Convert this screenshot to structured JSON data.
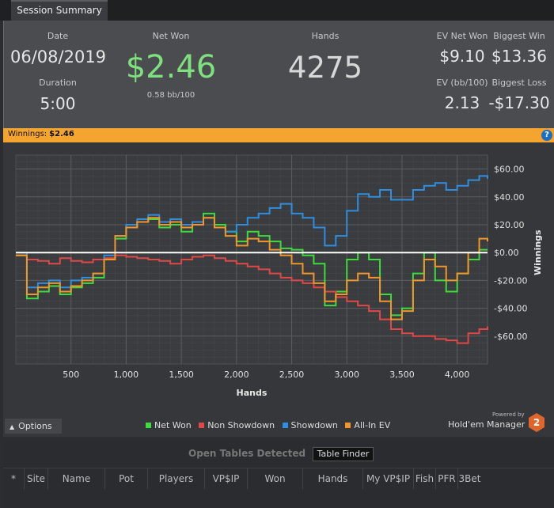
{
  "tab": {
    "label": "Session Summary"
  },
  "summary": {
    "date_label": "Date",
    "date_value": "06/08/2019",
    "duration_label": "Duration",
    "duration_value": "5:00",
    "netwon_label": "Net Won",
    "netwon_value": "$2.46",
    "netwon_sub": "0.58 bb/100",
    "hands_label": "Hands",
    "hands_value": "4275",
    "evnetwon_label": "EV Net Won",
    "evnetwon_value": "$9.10",
    "biggestwin_label": "Biggest Win",
    "biggestwin_value": "$13.36",
    "evbb_label": "EV (bb/100)",
    "evbb_value": "2.13",
    "biggestloss_label": "Biggest Loss",
    "biggestloss_value": "-$17.30"
  },
  "winbar": {
    "label": "Winnings:",
    "value": "$2.46",
    "help_icon": "?"
  },
  "colors": {
    "net_won": "#3ddc3d",
    "non_showdown": "#e04848",
    "showdown": "#2f8ee0",
    "allin_ev": "#f0962a",
    "accent": "#f3a530"
  },
  "chart_data": {
    "type": "line",
    "xlabel": "Hands",
    "ylabel": "Winnings",
    "xlim": [
      0,
      4275
    ],
    "ylim": [
      -80,
      70
    ],
    "x_ticks": [
      500,
      1000,
      1500,
      2000,
      2500,
      3000,
      3500,
      4000
    ],
    "x_tick_labels": [
      "500",
      "1,000",
      "1,500",
      "2,000",
      "2,500",
      "3,000",
      "3,500",
      "4,000"
    ],
    "y_ticks": [
      60,
      40,
      20,
      0,
      -20,
      -40,
      -60
    ],
    "y_tick_labels": [
      "$60.00",
      "$40.00",
      "$20.00",
      "$0.00",
      "-$20.00",
      "-$40.00",
      "-$60.00"
    ],
    "grid": true,
    "legend_position": "bottom",
    "series": [
      {
        "name": "Net Won",
        "color": "#3ddc3d",
        "x": [
          0,
          100,
          200,
          300,
          400,
          500,
          600,
          700,
          800,
          900,
          1000,
          1100,
          1200,
          1300,
          1400,
          1500,
          1600,
          1700,
          1800,
          1900,
          2000,
          2100,
          2200,
          2300,
          2400,
          2500,
          2600,
          2700,
          2800,
          2900,
          3000,
          3100,
          3200,
          3300,
          3400,
          3500,
          3600,
          3700,
          3800,
          3900,
          4000,
          4100,
          4200,
          4275
        ],
        "y": [
          -2,
          -33,
          -28,
          -24,
          -30,
          -25,
          -22,
          -18,
          -5,
          10,
          18,
          22,
          24,
          18,
          20,
          15,
          22,
          28,
          20,
          15,
          8,
          15,
          12,
          8,
          3,
          2,
          -2,
          -8,
          -38,
          -28,
          -5,
          0,
          -5,
          -30,
          -45,
          -40,
          -15,
          0,
          -20,
          -28,
          -15,
          -5,
          2,
          2
        ]
      },
      {
        "name": "Non Showdown",
        "color": "#e04848",
        "x": [
          0,
          100,
          200,
          300,
          400,
          500,
          600,
          700,
          800,
          900,
          1000,
          1100,
          1200,
          1300,
          1400,
          1500,
          1600,
          1700,
          1800,
          1900,
          2000,
          2100,
          2200,
          2300,
          2400,
          2500,
          2600,
          2700,
          2800,
          2900,
          3000,
          3100,
          3200,
          3300,
          3400,
          3500,
          3600,
          3700,
          3800,
          3900,
          4000,
          4100,
          4200,
          4275
        ],
        "y": [
          -2,
          -5,
          -6,
          -8,
          -4,
          -6,
          -7,
          -5,
          -4,
          -2,
          -3,
          -4,
          -5,
          -6,
          -8,
          -5,
          -3,
          -2,
          -4,
          -6,
          -8,
          -10,
          -12,
          -15,
          -18,
          -20,
          -22,
          -25,
          -28,
          -32,
          -35,
          -38,
          -42,
          -48,
          -55,
          -58,
          -60,
          -60,
          -62,
          -63,
          -65,
          -58,
          -55,
          -53
        ]
      },
      {
        "name": "Showdown",
        "color": "#2f8ee0",
        "x": [
          0,
          100,
          200,
          300,
          400,
          500,
          600,
          700,
          800,
          900,
          1000,
          1100,
          1200,
          1300,
          1400,
          1500,
          1600,
          1700,
          1800,
          1900,
          2000,
          2100,
          2200,
          2300,
          2400,
          2500,
          2600,
          2700,
          2800,
          2900,
          3000,
          3100,
          3200,
          3300,
          3400,
          3500,
          3600,
          3700,
          3800,
          3900,
          4000,
          4100,
          4200,
          4275
        ],
        "y": [
          0,
          -25,
          -22,
          -20,
          -25,
          -20,
          -18,
          -15,
          -2,
          12,
          20,
          24,
          27,
          22,
          24,
          20,
          22,
          25,
          18,
          15,
          20,
          25,
          28,
          32,
          35,
          28,
          25,
          18,
          5,
          12,
          30,
          42,
          40,
          45,
          38,
          38,
          45,
          48,
          50,
          45,
          48,
          52,
          55,
          53
        ]
      },
      {
        "name": "All-In EV",
        "color": "#f0962a",
        "x": [
          0,
          100,
          200,
          300,
          400,
          500,
          600,
          700,
          800,
          900,
          1000,
          1100,
          1200,
          1300,
          1400,
          1500,
          1600,
          1700,
          1800,
          1900,
          2000,
          2100,
          2200,
          2300,
          2400,
          2500,
          2600,
          2700,
          2800,
          2900,
          3000,
          3100,
          3200,
          3300,
          3400,
          3500,
          3600,
          3700,
          3800,
          3900,
          4000,
          4100,
          4200,
          4275
        ],
        "y": [
          -2,
          -30,
          -25,
          -22,
          -28,
          -24,
          -20,
          -15,
          -5,
          12,
          18,
          22,
          25,
          20,
          22,
          18,
          20,
          25,
          18,
          12,
          5,
          10,
          8,
          2,
          -2,
          -8,
          -15,
          -22,
          -35,
          -30,
          -20,
          -15,
          -18,
          -35,
          -48,
          -42,
          -20,
          -5,
          -10,
          -20,
          -15,
          0,
          10,
          8
        ]
      }
    ]
  },
  "options": {
    "label": "Options",
    "chevron_icon": "chevron-up"
  },
  "legend": [
    {
      "label": "Net Won",
      "color": "#3ddc3d"
    },
    {
      "label": "Non Showdown",
      "color": "#e04848"
    },
    {
      "label": "Showdown",
      "color": "#2f8ee0"
    },
    {
      "label": "All-In EV",
      "color": "#f0962a"
    }
  ],
  "brand": {
    "powered_by": "Powered by",
    "name": "Hold'em Manager",
    "logo": "2"
  },
  "open_tables": {
    "title": "Open Tables Detected",
    "button": "Table Finder",
    "columns": [
      "*",
      "Site",
      "Name",
      "Pot",
      "Players",
      "VP$IP",
      "Won",
      "Hands",
      "My VP$IP",
      "Fish",
      "PFR",
      "3Bet"
    ]
  }
}
